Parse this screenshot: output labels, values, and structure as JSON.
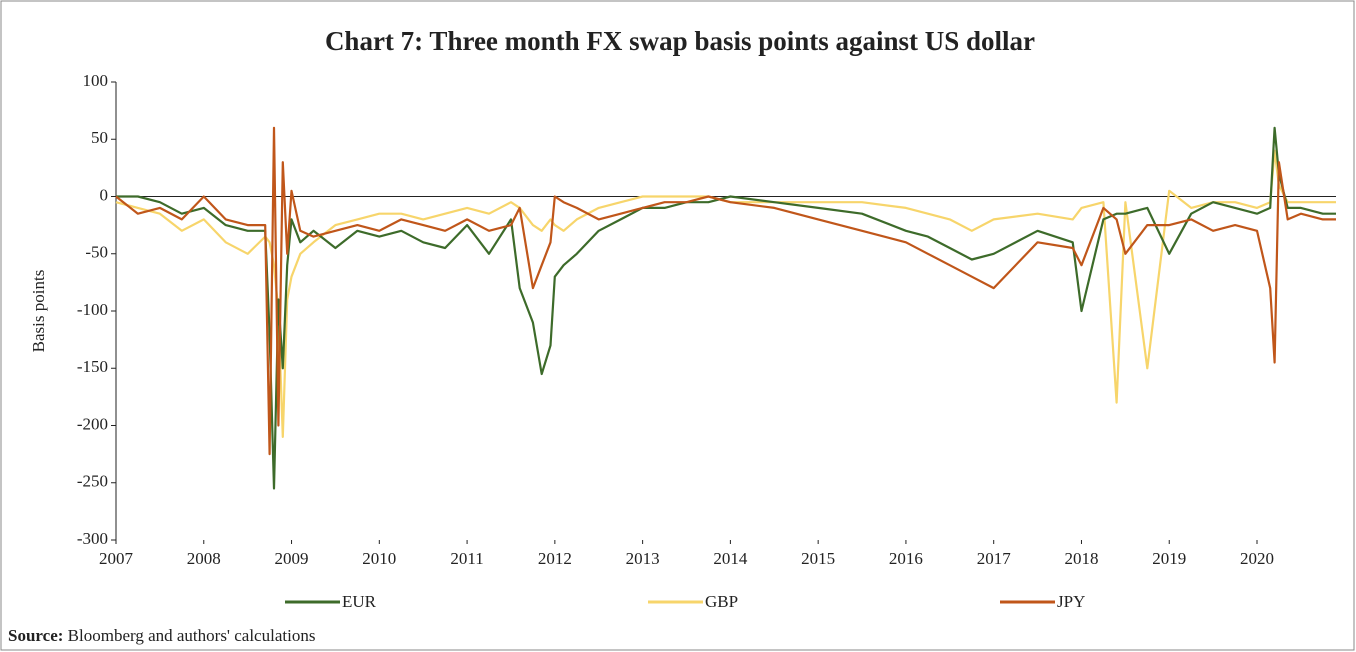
{
  "chart_data": {
    "type": "line",
    "title": "Chart 7: Three month FX swap basis points against US dollar",
    "y_label": "Basis points",
    "source_label": "Source:",
    "source_text": "Bloomberg and authors' calculations",
    "x": [
      2007.0,
      2007.25,
      2007.5,
      2007.75,
      2008.0,
      2008.25,
      2008.5,
      2008.7,
      2008.75,
      2008.8,
      2008.85,
      2008.9,
      2008.95,
      2009.0,
      2009.1,
      2009.25,
      2009.5,
      2009.75,
      2010.0,
      2010.25,
      2010.5,
      2010.75,
      2011.0,
      2011.25,
      2011.5,
      2011.6,
      2011.75,
      2011.85,
      2011.95,
      2012.0,
      2012.1,
      2012.25,
      2012.5,
      2012.75,
      2013.0,
      2013.25,
      2013.5,
      2013.75,
      2014.0,
      2014.5,
      2015.0,
      2015.5,
      2016.0,
      2016.25,
      2016.5,
      2016.75,
      2017.0,
      2017.5,
      2017.9,
      2018.0,
      2018.25,
      2018.4,
      2018.5,
      2018.75,
      2019.0,
      2019.25,
      2019.5,
      2019.75,
      2020.0,
      2020.15,
      2020.2,
      2020.25,
      2020.35,
      2020.5,
      2020.75,
      2020.9
    ],
    "series": [
      {
        "name": "EUR",
        "color": "#3d6b2a",
        "values": [
          0,
          0,
          -5,
          -15,
          -10,
          -25,
          -30,
          -30,
          -120,
          -255,
          -90,
          -150,
          -60,
          -20,
          -40,
          -30,
          -45,
          -30,
          -35,
          -30,
          -40,
          -45,
          -25,
          -50,
          -20,
          -80,
          -110,
          -155,
          -130,
          -70,
          -60,
          -50,
          -30,
          -20,
          -10,
          -10,
          -5,
          -5,
          0,
          -5,
          -10,
          -15,
          -30,
          -35,
          -45,
          -55,
          -50,
          -30,
          -40,
          -100,
          -20,
          -15,
          -15,
          -10,
          -50,
          -15,
          -5,
          -10,
          -15,
          -10,
          60,
          20,
          -10,
          -10,
          -15,
          -15
        ]
      },
      {
        "name": "GBP",
        "color": "#f7d56b",
        "values": [
          -5,
          -10,
          -15,
          -30,
          -20,
          -40,
          -50,
          -35,
          -40,
          -60,
          -100,
          -210,
          -90,
          -70,
          -50,
          -40,
          -25,
          -20,
          -15,
          -15,
          -20,
          -15,
          -10,
          -15,
          -5,
          -10,
          -25,
          -30,
          -20,
          -25,
          -30,
          -20,
          -10,
          -5,
          0,
          0,
          0,
          0,
          -5,
          -5,
          -5,
          -5,
          -10,
          -15,
          -20,
          -30,
          -20,
          -15,
          -20,
          -10,
          -5,
          -180,
          -5,
          -150,
          5,
          -10,
          -5,
          -5,
          -10,
          -5,
          40,
          10,
          -5,
          -5,
          -5,
          -5
        ]
      },
      {
        "name": "JPY",
        "color": "#c0561a",
        "values": [
          0,
          -15,
          -10,
          -20,
          0,
          -20,
          -25,
          -25,
          -225,
          60,
          -200,
          30,
          -50,
          5,
          -30,
          -35,
          -30,
          -25,
          -30,
          -20,
          -25,
          -30,
          -20,
          -30,
          -25,
          -10,
          -80,
          -60,
          -40,
          0,
          -5,
          -10,
          -20,
          -15,
          -10,
          -5,
          -5,
          0,
          -5,
          -10,
          -20,
          -30,
          -40,
          -50,
          -60,
          -70,
          -80,
          -40,
          -45,
          -60,
          -10,
          -20,
          -50,
          -25,
          -25,
          -20,
          -30,
          -25,
          -30,
          -80,
          -145,
          30,
          -20,
          -15,
          -20,
          -20
        ]
      }
    ],
    "xlim": [
      2007,
      2020.9
    ],
    "xticks": [
      2007,
      2008,
      2009,
      2010,
      2011,
      2012,
      2013,
      2014,
      2015,
      2016,
      2017,
      2018,
      2019,
      2020
    ],
    "ylim": [
      -300,
      100
    ],
    "yticks": [
      -300,
      -250,
      -200,
      -150,
      -100,
      -50,
      0,
      50,
      100
    ]
  }
}
